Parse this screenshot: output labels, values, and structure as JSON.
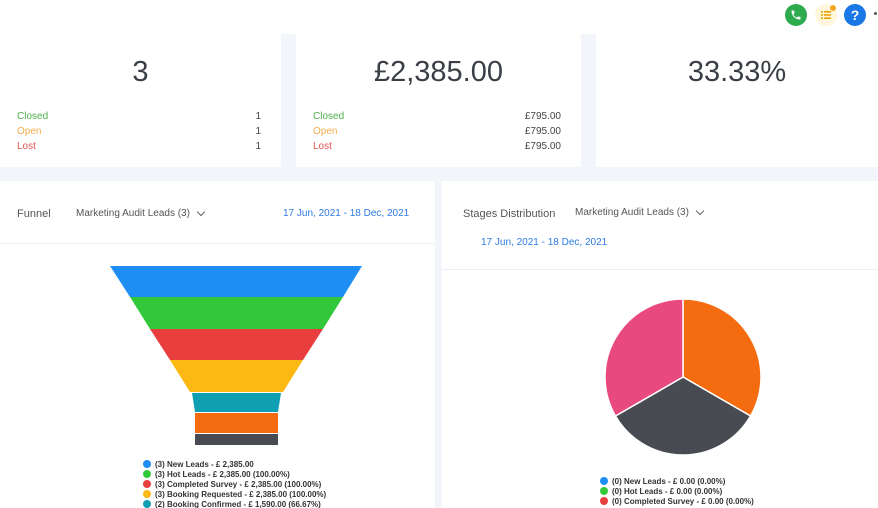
{
  "topbar": {
    "help_label": "?"
  },
  "stats": [
    {
      "value": "3",
      "rows": [
        {
          "label": "Closed",
          "value": "1"
        },
        {
          "label": "Open",
          "value": "1"
        },
        {
          "label": "Lost",
          "value": "1"
        }
      ]
    },
    {
      "value": "£2,385.00",
      "rows": [
        {
          "label": "Closed",
          "value": "£795.00"
        },
        {
          "label": "Open",
          "value": "£795.00"
        },
        {
          "label": "Lost",
          "value": "£795.00"
        }
      ]
    },
    {
      "value": "33.33%"
    }
  ],
  "funnel": {
    "title": "Funnel",
    "select_value": "Marketing Audit Leads (3)",
    "date_range": "17 Jun, 2021 - 18 Dec, 2021",
    "stages": [
      {
        "color": "#1e8ef5"
      },
      {
        "color": "#33c83b"
      },
      {
        "color": "#e93e3e"
      },
      {
        "color": "#fdb913"
      },
      {
        "color": "#0e9fb3"
      },
      {
        "color": "#f56b0f"
      },
      {
        "color": "#484b52"
      }
    ],
    "legend": [
      {
        "label": "(3) New Leads - £ 2,385.00",
        "color": "#1e8ef5"
      },
      {
        "label": "(3) Hot Leads - £ 2,385.00 (100.00%)",
        "color": "#33c83b"
      },
      {
        "label": "(3) Completed Survey - £ 2,385.00 (100.00%)",
        "color": "#e93e3e"
      },
      {
        "label": "(3) Booking Requested - £ 2,385.00 (100.00%)",
        "color": "#fdb913"
      },
      {
        "label": "(2) Booking Confirmed - £ 1,590.00 (66.67%)",
        "color": "#0e9fb3"
      }
    ]
  },
  "stages_distribution": {
    "title": "Stages Distribution",
    "select_value": "Marketing Audit Leads (3)",
    "date_range": "17 Jun, 2021 - 18 Dec, 2021",
    "legend": [
      {
        "label": "(0) New Leads - £ 0.00 (0.00%)",
        "color": "#1e8ef5"
      },
      {
        "label": "(0) Hot Leads - £ 0.00 (0.00%)",
        "color": "#33c83b"
      },
      {
        "label": "(0) Completed Survey - £ 0.00 (0.00%)",
        "color": "#e93e3e"
      }
    ]
  },
  "chart_data": {
    "type": "pie",
    "values": [
      1,
      1,
      1
    ],
    "colors": [
      "#f56b0f",
      "#484b52",
      "#e84a7f"
    ]
  }
}
